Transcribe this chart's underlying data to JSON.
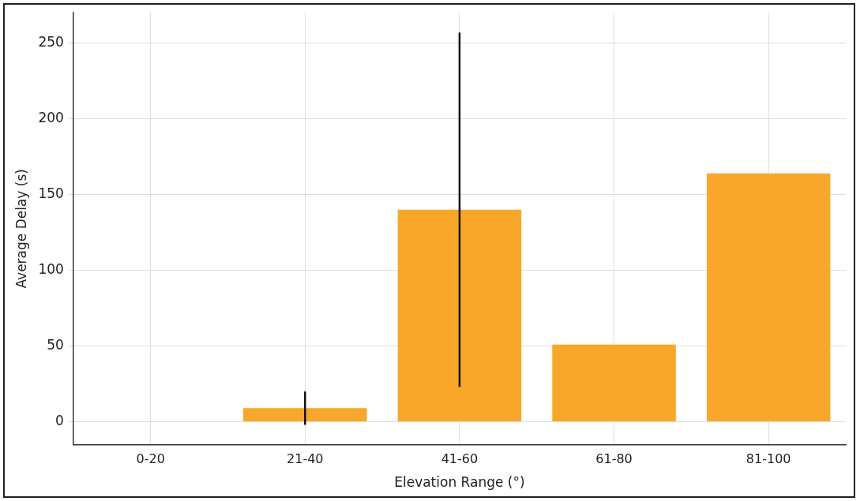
{
  "chart_data": {
    "type": "bar",
    "xlabel": "Elevation Range (°)",
    "ylabel": "Average Delay (s)",
    "categories": [
      "0-20",
      "21-40",
      "41-60",
      "61-80",
      "81-100"
    ],
    "values": [
      null,
      9,
      140,
      51,
      164
    ],
    "errors": [
      null,
      11,
      117,
      null,
      null
    ],
    "color": "#f9a72b",
    "ylim": [
      -15,
      270
    ],
    "yticks": [
      0,
      50,
      100,
      150,
      200,
      250
    ],
    "grid": true,
    "legend": false
  }
}
